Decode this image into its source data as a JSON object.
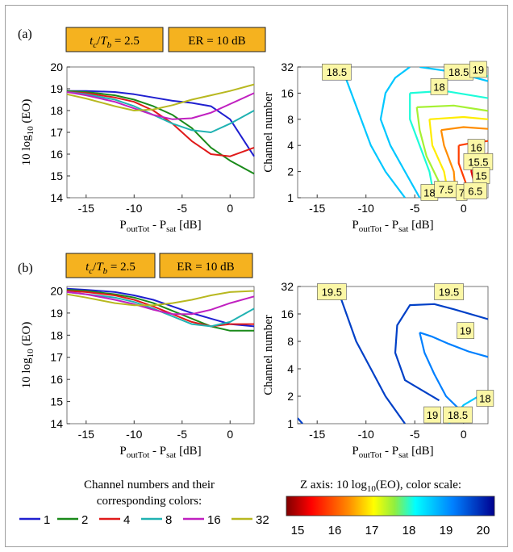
{
  "panels": [
    {
      "label": "(a)",
      "badge1": "t_c/T_b = 2.5",
      "badge2": "ER = 10 dB"
    },
    {
      "label": "(b)",
      "badge1": "t_c/T_b = 2.5",
      "badge2": "ER = 10 dB"
    }
  ],
  "series_colors": {
    "1": "#1f1fd0",
    "2": "#1a8a1a",
    "4": "#e01a1a",
    "8": "#20b2b2",
    "16": "#c020c0",
    "32": "#b8b820"
  },
  "legend": {
    "title_line1": "Channel numbers and their",
    "title_line2": "corresponding colors:",
    "items": [
      "1",
      "2",
      "4",
      "8",
      "16",
      "32"
    ]
  },
  "colorbar": {
    "title": "Z axis: 10 log10(EO), color scale:",
    "ticks": [
      "15",
      "16",
      "17",
      "18",
      "19",
      "20"
    ],
    "colormap": "jet"
  },
  "chart_data": [
    {
      "type": "line",
      "panel": "a-left",
      "xlabel": "P_outTot - P_sat [dB]",
      "ylabel": "10 log10 (EO)",
      "xlim": [
        -17,
        2.5
      ],
      "ylim": [
        14,
        20
      ],
      "xticks": [
        "-15",
        "-10",
        "-5",
        "0"
      ],
      "yticks": [
        "14",
        "15",
        "16",
        "17",
        "18",
        "19",
        "20"
      ],
      "series": [
        {
          "name": "1",
          "x": [
            -17,
            -15,
            -12,
            -10,
            -8,
            -6,
            -4,
            -2,
            0,
            2.5
          ],
          "y": [
            18.9,
            18.9,
            18.85,
            18.75,
            18.6,
            18.45,
            18.35,
            18.2,
            17.6,
            15.9
          ]
        },
        {
          "name": "2",
          "x": [
            -17,
            -15,
            -12,
            -10,
            -8,
            -6,
            -4,
            -2,
            0,
            2.5
          ],
          "y": [
            18.9,
            18.85,
            18.7,
            18.5,
            18.2,
            17.8,
            17.2,
            16.3,
            15.7,
            15.1
          ]
        },
        {
          "name": "4",
          "x": [
            -17,
            -15,
            -12,
            -10,
            -8,
            -6,
            -4,
            -2,
            0,
            2.5
          ],
          "y": [
            18.85,
            18.8,
            18.6,
            18.4,
            18.0,
            17.4,
            16.6,
            16.0,
            15.9,
            16.3
          ]
        },
        {
          "name": "8",
          "x": [
            -17,
            -15,
            -12,
            -10,
            -8,
            -6,
            -4,
            -2,
            0,
            2.5
          ],
          "y": [
            18.85,
            18.75,
            18.5,
            18.2,
            17.8,
            17.4,
            17.1,
            17.0,
            17.4,
            18.0
          ]
        },
        {
          "name": "16",
          "x": [
            -17,
            -15,
            -12,
            -10,
            -8,
            -6,
            -4,
            -2,
            0,
            2.5
          ],
          "y": [
            18.85,
            18.7,
            18.4,
            18.1,
            17.8,
            17.6,
            17.65,
            17.9,
            18.3,
            18.8
          ]
        },
        {
          "name": "32",
          "x": [
            -17,
            -15,
            -12,
            -10,
            -8,
            -6,
            -4,
            -2,
            0,
            2.5
          ],
          "y": [
            18.75,
            18.55,
            18.2,
            18.0,
            18.05,
            18.25,
            18.5,
            18.7,
            18.9,
            19.2
          ]
        }
      ]
    },
    {
      "type": "contour",
      "panel": "a-right",
      "xlabel": "P_outTot - P_sat [dB]",
      "ylabel": "Channel number",
      "xlim": [
        -17,
        2.5
      ],
      "ylim": [
        1,
        32
      ],
      "yscale": "log2",
      "xticks": [
        "-15",
        "-10",
        "-5",
        "0"
      ],
      "yticks": [
        "1",
        "2",
        "4",
        "8",
        "16",
        "32"
      ],
      "contours": [
        {
          "level": 18.5,
          "points": [
            [
              -12.5,
              32
            ],
            [
              -11.5,
              16
            ],
            [
              -10.5,
              8
            ],
            [
              -9.5,
              4
            ],
            [
              -8,
              2
            ],
            [
              -6,
              1
            ]
          ]
        },
        {
          "level": 18.5,
          "points": [
            [
              -5.5,
              32
            ],
            [
              -7,
              24
            ],
            [
              -8,
              16
            ],
            [
              -8.5,
              8
            ],
            [
              -7.5,
              4
            ],
            [
              -6,
              2
            ],
            [
              -4.5,
              1
            ]
          ]
        },
        {
          "level": 18.5,
          "points": [
            [
              -4.5,
              32
            ],
            [
              -1,
              28
            ],
            [
              2.5,
              22
            ]
          ]
        },
        {
          "level": 18,
          "points": [
            [
              -1.5,
              32
            ],
            [
              0.5,
              28
            ],
            [
              2.5,
              25
            ]
          ]
        },
        {
          "level": 18,
          "points": [
            [
              -5.5,
              16
            ],
            [
              -5.5,
              8
            ],
            [
              -4.5,
              4
            ],
            [
              -3.5,
              2
            ],
            [
              -3,
              1
            ]
          ]
        },
        {
          "level": 18,
          "points": [
            [
              -5.5,
              16
            ],
            [
              -2,
              17
            ],
            [
              2.5,
              14
            ]
          ]
        },
        {
          "level": 17.5,
          "points": [
            [
              -4.8,
              11
            ],
            [
              -4.5,
              6
            ],
            [
              -3.8,
              3
            ],
            [
              -2.5,
              1.5
            ],
            [
              -2.2,
              1
            ]
          ]
        },
        {
          "level": 17.5,
          "points": [
            [
              -4.8,
              11
            ],
            [
              -1,
              11.5
            ],
            [
              2.5,
              10
            ]
          ]
        },
        {
          "level": 17,
          "points": [
            [
              -3.5,
              8
            ],
            [
              -3.2,
              4
            ],
            [
              -2,
              2
            ],
            [
              -1.5,
              1
            ]
          ]
        },
        {
          "level": 17,
          "points": [
            [
              -3.5,
              8
            ],
            [
              0,
              8.5
            ],
            [
              2.5,
              8
            ]
          ]
        },
        {
          "level": 16.5,
          "points": [
            [
              -2.3,
              6
            ],
            [
              -2,
              4
            ],
            [
              -1,
              2
            ],
            [
              -0.8,
              1
            ]
          ]
        },
        {
          "level": 16.5,
          "points": [
            [
              -2.3,
              6
            ],
            [
              0,
              6.5
            ],
            [
              2.5,
              6.2
            ]
          ]
        },
        {
          "level": 16,
          "points": [
            [
              -0.5,
              4
            ],
            [
              -0.5,
              2.5
            ],
            [
              0.2,
              1.5
            ],
            [
              0.3,
              1
            ]
          ]
        },
        {
          "level": 16,
          "points": [
            [
              -0.5,
              4
            ],
            [
              1,
              4.3
            ],
            [
              2.5,
              4.5
            ]
          ]
        },
        {
          "level": 15.5,
          "points": [
            [
              0.8,
              3
            ],
            [
              0.8,
              2
            ],
            [
              1.2,
              1.3
            ],
            [
              1.3,
              1
            ]
          ]
        },
        {
          "level": 15.5,
          "points": [
            [
              0.8,
              3
            ],
            [
              2.5,
              3.2
            ]
          ]
        }
      ],
      "labels": [
        {
          "text": "18.5",
          "x": -13,
          "y": 28
        },
        {
          "text": "18.5",
          "x": -0.5,
          "y": 28
        },
        {
          "text": "19",
          "x": 1.5,
          "y": 30
        },
        {
          "text": "18",
          "x": -2.5,
          "y": 19
        },
        {
          "text": "16",
          "x": 1.3,
          "y": 3.8
        },
        {
          "text": "15.5",
          "x": 1.5,
          "y": 2.6
        },
        {
          "text": "15",
          "x": 1.8,
          "y": 1.8
        },
        {
          "text": "18",
          "x": -3.5,
          "y": 1.15
        },
        {
          "text": "7.5",
          "x": -1.8,
          "y": 1.25
        },
        {
          "text": "7",
          "x": -0.2,
          "y": 1.15
        },
        {
          "text": "6.5",
          "x": 1.2,
          "y": 1.2
        }
      ]
    },
    {
      "type": "line",
      "panel": "b-left",
      "xlabel": "P_outTot - P_sat [dB]",
      "ylabel": "10 log10 (EO)",
      "xlim": [
        -17,
        2.5
      ],
      "ylim": [
        14,
        20.2
      ],
      "xticks": [
        "-15",
        "-10",
        "-5",
        "0"
      ],
      "yticks": [
        "14",
        "15",
        "16",
        "17",
        "18",
        "19",
        "20"
      ],
      "series": [
        {
          "name": "1",
          "x": [
            -17,
            -15,
            -12,
            -10,
            -8,
            -6,
            -4,
            -2,
            0,
            2.5
          ],
          "y": [
            20.1,
            20.05,
            19.95,
            19.8,
            19.6,
            19.3,
            19.0,
            18.75,
            18.5,
            18.4
          ]
        },
        {
          "name": "2",
          "x": [
            -17,
            -15,
            -12,
            -10,
            -8,
            -6,
            -4,
            -2,
            0,
            2.5
          ],
          "y": [
            20.05,
            20.0,
            19.85,
            19.7,
            19.45,
            19.1,
            18.75,
            18.4,
            18.2,
            18.2
          ]
        },
        {
          "name": "4",
          "x": [
            -17,
            -15,
            -12,
            -10,
            -8,
            -6,
            -4,
            -2,
            0,
            2.5
          ],
          "y": [
            20.0,
            19.95,
            19.8,
            19.6,
            19.3,
            18.95,
            18.6,
            18.4,
            18.5,
            18.5
          ]
        },
        {
          "name": "8",
          "x": [
            -17,
            -15,
            -12,
            -10,
            -8,
            -6,
            -4,
            -2,
            0,
            2.5
          ],
          "y": [
            19.95,
            19.85,
            19.7,
            19.5,
            19.2,
            18.85,
            18.5,
            18.4,
            18.6,
            19.2
          ]
        },
        {
          "name": "16",
          "x": [
            -17,
            -15,
            -12,
            -10,
            -8,
            -6,
            -4,
            -2,
            0,
            2.5
          ],
          "y": [
            19.95,
            19.85,
            19.6,
            19.4,
            19.15,
            18.95,
            18.95,
            19.15,
            19.45,
            19.75
          ]
        },
        {
          "name": "32",
          "x": [
            -17,
            -15,
            -12,
            -10,
            -8,
            -6,
            -4,
            -2,
            0,
            2.5
          ],
          "y": [
            19.85,
            19.7,
            19.45,
            19.35,
            19.35,
            19.45,
            19.6,
            19.8,
            19.95,
            20.0
          ]
        }
      ]
    },
    {
      "type": "contour",
      "panel": "b-right",
      "xlabel": "P_outTot - P_sat [dB]",
      "ylabel": "Channel number",
      "xlim": [
        -17,
        2.5
      ],
      "ylim": [
        1,
        32
      ],
      "yscale": "log2",
      "xticks": [
        "-15",
        "-10",
        "-5",
        "0"
      ],
      "yticks": [
        "1",
        "2",
        "4",
        "8",
        "16",
        "32"
      ],
      "contours": [
        {
          "level": 19.5,
          "points": [
            [
              -13,
              32
            ],
            [
              -12,
              16
            ],
            [
              -11,
              8
            ],
            [
              -9.5,
              4
            ],
            [
              -8,
              2
            ],
            [
              -6,
              1
            ]
          ]
        },
        {
          "level": 19.5,
          "points": [
            [
              -17,
              1.15
            ],
            [
              -16.5,
              1
            ]
          ]
        },
        {
          "level": 19.5,
          "points": [
            [
              -2.5,
              1.8
            ],
            [
              -6,
              3
            ],
            [
              -7,
              6
            ],
            [
              -6.8,
              12
            ],
            [
              -5.5,
              20
            ],
            [
              -3,
              20.5
            ],
            [
              -1,
              18
            ],
            [
              2.5,
              14
            ]
          ]
        },
        {
          "level": 19,
          "points": [
            [
              -4.5,
              10
            ],
            [
              -4,
              6
            ],
            [
              -3,
              3.5
            ],
            [
              -1.8,
              2
            ],
            [
              0,
              1.3
            ]
          ]
        },
        {
          "level": 19,
          "points": [
            [
              -4.5,
              10
            ],
            [
              -3.2,
              9
            ],
            [
              -1.5,
              7.5
            ],
            [
              0.5,
              6.2
            ],
            [
              2.5,
              5.4
            ]
          ]
        },
        {
          "level": 18.5,
          "points": [
            [
              -1.5,
              1
            ],
            [
              0,
              1.6
            ],
            [
              2.5,
              2.3
            ]
          ]
        }
      ],
      "labels": [
        {
          "text": "19.5",
          "x": -13.5,
          "y": 28
        },
        {
          "text": "19.5",
          "x": -1.5,
          "y": 28
        },
        {
          "text": "19",
          "x": 0.2,
          "y": 10.5
        },
        {
          "text": "18",
          "x": 2.2,
          "y": 1.9
        },
        {
          "text": "19",
          "x": -3.2,
          "y": 1.25
        },
        {
          "text": "18.5",
          "x": -0.6,
          "y": 1.25
        }
      ]
    }
  ]
}
